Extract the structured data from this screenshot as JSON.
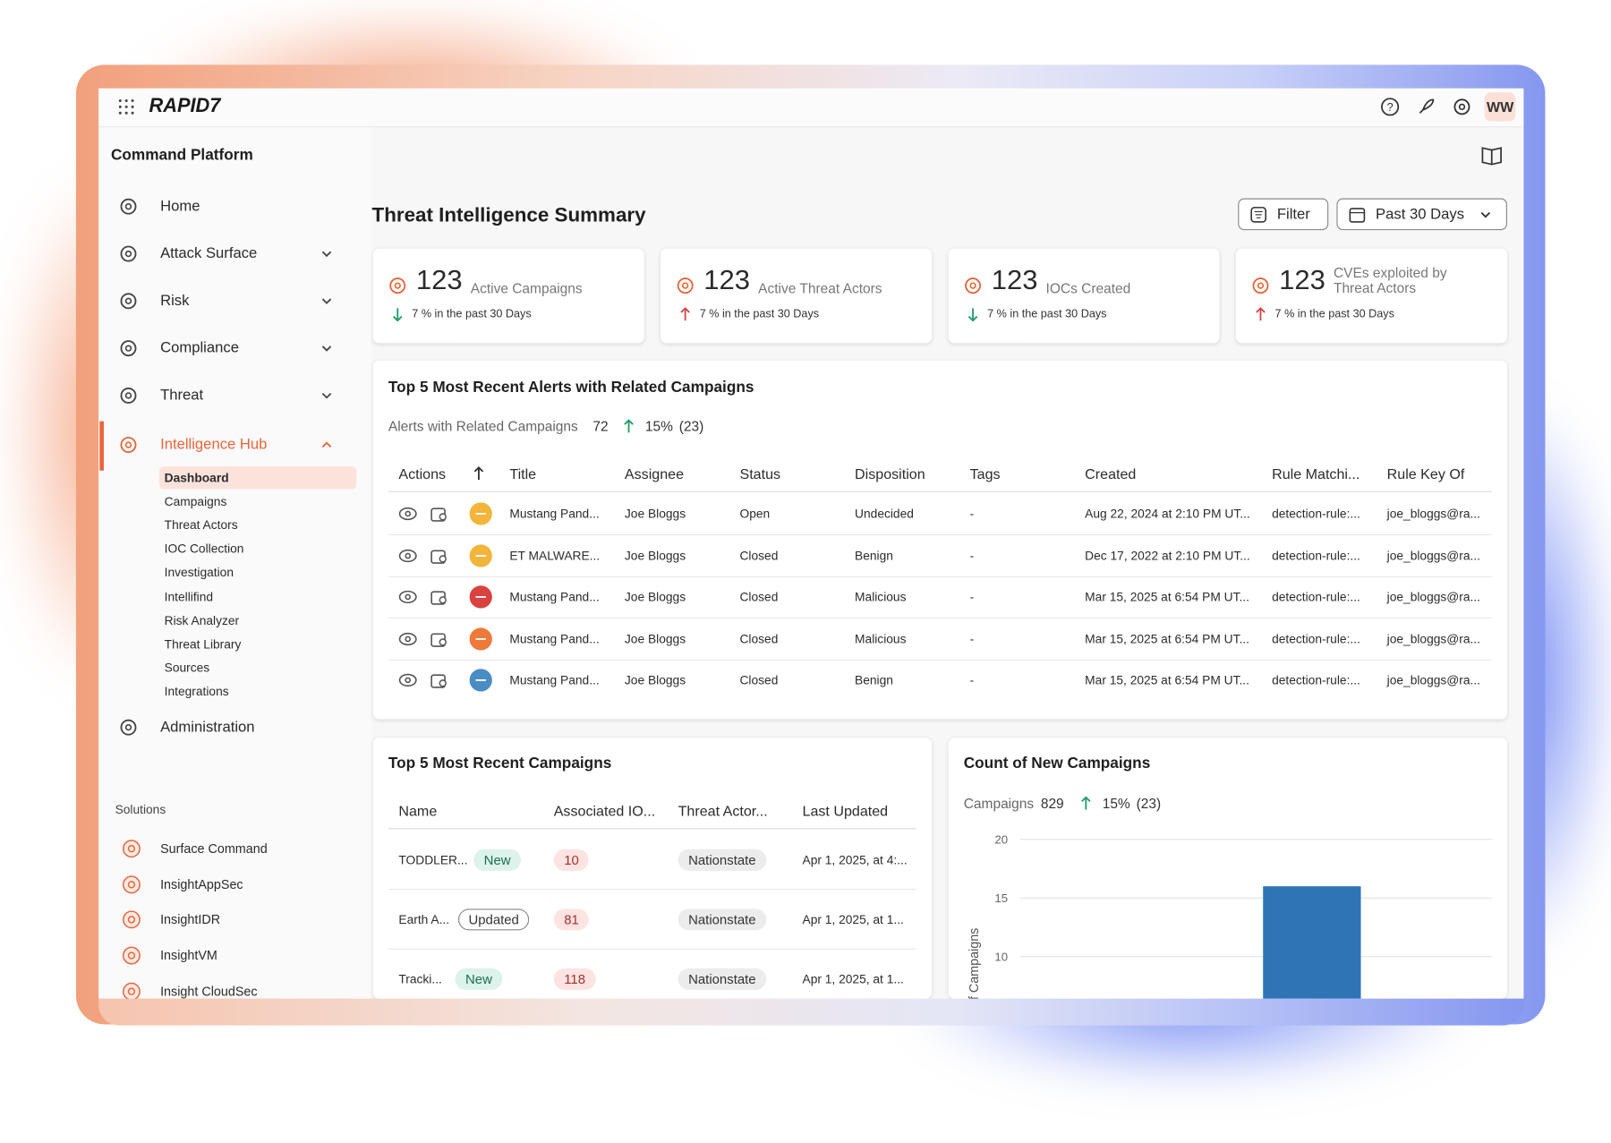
{
  "header": {
    "brand": "RAPID7",
    "user_initials": "WW"
  },
  "sidebar": {
    "title": "Command Platform",
    "nav": [
      "Home",
      "Attack Surface",
      "Risk",
      "Compliance",
      "Threat",
      "Intelligence Hub"
    ],
    "subnav": [
      "Dashboard",
      "Campaigns",
      "Threat Actors",
      "IOC Collection",
      "Investigation",
      "Intellifind",
      "Risk Analyzer",
      "Threat Library",
      "Sources",
      "Integrations"
    ],
    "admin": "Administration",
    "solutions_title": "Solutions",
    "solutions": [
      "Surface Command",
      "InsightAppSec",
      "InsightIDR",
      "InsightVM",
      "Insight CloudSec"
    ]
  },
  "page": {
    "title": "Threat Intelligence Summary",
    "filter": "Filter",
    "date_range": "Past 30 Days"
  },
  "kpis": [
    {
      "value": 123,
      "label": "Active Campaigns",
      "change": "7 %",
      "period": "in the past 30 Days"
    },
    {
      "value": 123,
      "label": "Active Threat Actors",
      "change": "7 %",
      "period": "in the past 30 Days"
    },
    {
      "value": 123,
      "label": "IOCs Created",
      "change": "7 %",
      "period": "in the past 30 Days"
    },
    {
      "value": 123,
      "label": "CVEs exploited by Threat Actors",
      "change": "7 %",
      "period": "in the past 30 Days"
    }
  ],
  "alerts": {
    "title": "Top 5 Most Recent Alerts with Related Campaigns",
    "summary_label": "Alerts with Related Campaigns",
    "summary_value": 72,
    "change": "15%",
    "change_count": "(23)",
    "columns": [
      "Actions",
      "Title",
      "Assignee",
      "Status",
      "Disposition",
      "Tags",
      "Created",
      "Rule Matchi...",
      "Rule Key Of"
    ],
    "rows": [
      [
        "Mustang Pand...",
        "Joe Bloggs",
        "Open",
        "Undecided",
        "-",
        "Aug 22, 2024 at 2:10 PM UT...",
        "detection-rule:...",
        "joe_bloggs@ra..."
      ],
      [
        "ET MALWARE...",
        "Joe Bloggs",
        "Closed",
        "Benign",
        "-",
        "Dec 17, 2022 at 2:10 PM UT...",
        "detection-rule:...",
        "joe_bloggs@ra..."
      ],
      [
        "Mustang Pand...",
        "Joe Bloggs",
        "Closed",
        "Malicious",
        "-",
        "Mar 15, 2025 at 6:54 PM UT...",
        "detection-rule:...",
        "joe_bloggs@ra..."
      ],
      [
        "Mustang Pand...",
        "Joe Bloggs",
        "Closed",
        "Malicious",
        "-",
        "Mar 15, 2025 at 6:54 PM UT...",
        "detection-rule:...",
        "joe_bloggs@ra..."
      ],
      [
        "Mustang Pand...",
        "Joe Bloggs",
        "Closed",
        "Benign",
        "-",
        "Mar 15, 2025 at 6:54 PM UT...",
        "detection-rule:...",
        "joe_bloggs@ra..."
      ]
    ]
  },
  "campaigns": {
    "title": "Top 5 Most Recent Campaigns",
    "columns": [
      "Name",
      "Associated IO...",
      "Threat Actor...",
      "Last Updated"
    ],
    "rows": [
      {
        "name": "TODDLER...",
        "badge": "New",
        "iocs": 10,
        "actor": "Nationstate",
        "updated": "Apr 1, 2025, at 4:..."
      },
      {
        "name": "Earth A...",
        "badge": "Updated",
        "iocs": 81,
        "actor": "Nationstate",
        "updated": "Apr 1, 2025, at 1..."
      },
      {
        "name": "Tracki...",
        "badge": "New",
        "iocs": 118,
        "actor": "Nationstate",
        "updated": "Apr 1, 2025, at 1..."
      }
    ]
  },
  "chart_data": {
    "type": "bar",
    "title": "Count of New Campaigns",
    "summary_label": "Campaigns",
    "summary_value": 829,
    "change": "15%",
    "change_count": "(23)",
    "ylabel": "Count of Campaigns",
    "categories": [
      null
    ],
    "values": [
      16
    ],
    "color": "#2f74b5",
    "ylim": [
      0,
      20
    ],
    "yticks": [
      10,
      15,
      20
    ],
    "grid": true
  }
}
